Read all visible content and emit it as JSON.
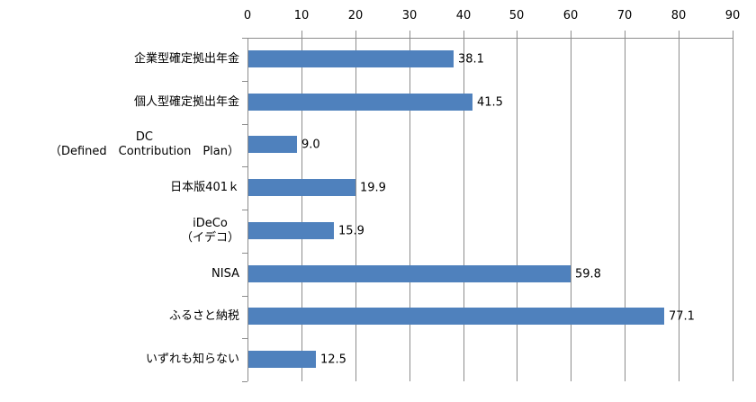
{
  "chart_data": {
    "type": "bar",
    "orientation": "horizontal",
    "title": "",
    "xlabel": "",
    "ylabel": "",
    "xlim": [
      0,
      90
    ],
    "x_ticks": [
      "0",
      "10",
      "20",
      "30",
      "40",
      "50",
      "60",
      "70",
      "80",
      "90"
    ],
    "grid": true,
    "legend": null,
    "categories": [
      "企業型確定拠出年金",
      "個人型確定拠出年金",
      "DC\n（Defined　Contribution　Plan）",
      "日本版401ｋ",
      "iDeCo\n（イデコ）",
      "NISA",
      "ふるさと納税",
      "いずれも知らない"
    ],
    "values": [
      38.1,
      41.5,
      9.0,
      19.9,
      15.9,
      59.8,
      77.1,
      12.5
    ],
    "value_labels": [
      "38.1",
      "41.5",
      "9.0",
      "19.9",
      "15.9",
      "59.8",
      "77.1",
      "12.5"
    ],
    "bar_color": "#4f81bd",
    "grid_color": "#8c8c8c"
  }
}
